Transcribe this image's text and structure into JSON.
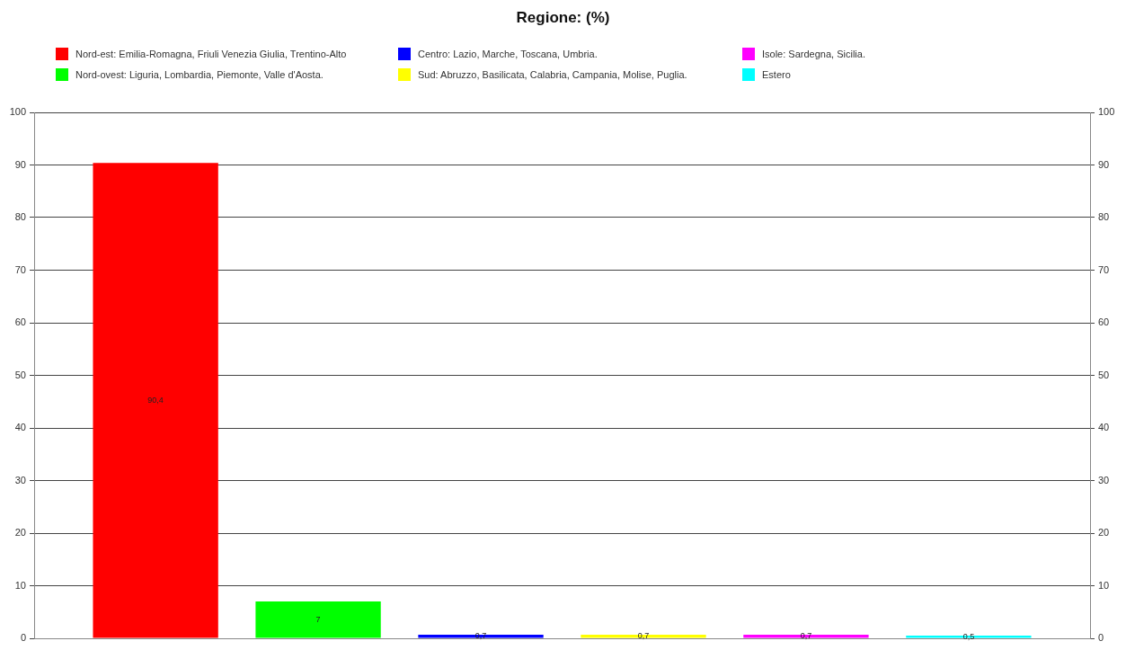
{
  "chart_data": {
    "type": "bar",
    "title": "Regione: (%)",
    "categories": [
      null
    ],
    "series": [
      {
        "name": "Nord-est: Emilia-Romagna, Friuli Venezia Giulia, Trentino-Alto",
        "color": "#ff0000",
        "values": [
          90.4
        ],
        "value_labels": [
          "90,4"
        ]
      },
      {
        "name": "Nord-ovest: Liguria, Lombardia, Piemonte, Valle d'Aosta.",
        "color": "#00ff00",
        "values": [
          7
        ],
        "value_labels": [
          "7"
        ]
      },
      {
        "name": "Centro: Lazio, Marche, Toscana, Umbria.",
        "color": "#0000ff",
        "values": [
          0.7
        ],
        "value_labels": [
          "0,7"
        ]
      },
      {
        "name": "Sud: Abruzzo, Basilicata, Calabria, Campania, Molise, Puglia.",
        "color": "#ffff00",
        "values": [
          0.7
        ],
        "value_labels": [
          "0,7"
        ]
      },
      {
        "name": "Isole: Sardegna, Sicilia.",
        "color": "#ff00ff",
        "values": [
          0.7
        ],
        "value_labels": [
          "0,7"
        ]
      },
      {
        "name": "Estero",
        "color": "#00ffff",
        "values": [
          0.5
        ],
        "value_labels": [
          "0,5"
        ]
      }
    ],
    "ylim": [
      0,
      100
    ],
    "yticks": [
      0,
      10,
      20,
      30,
      40,
      50,
      60,
      70,
      80,
      90,
      100
    ],
    "y2lim": [
      0,
      100
    ],
    "y2ticks": [
      0,
      10,
      20,
      30,
      40,
      50,
      60,
      70,
      80,
      90,
      100
    ],
    "grid": "y",
    "legend": "top"
  }
}
